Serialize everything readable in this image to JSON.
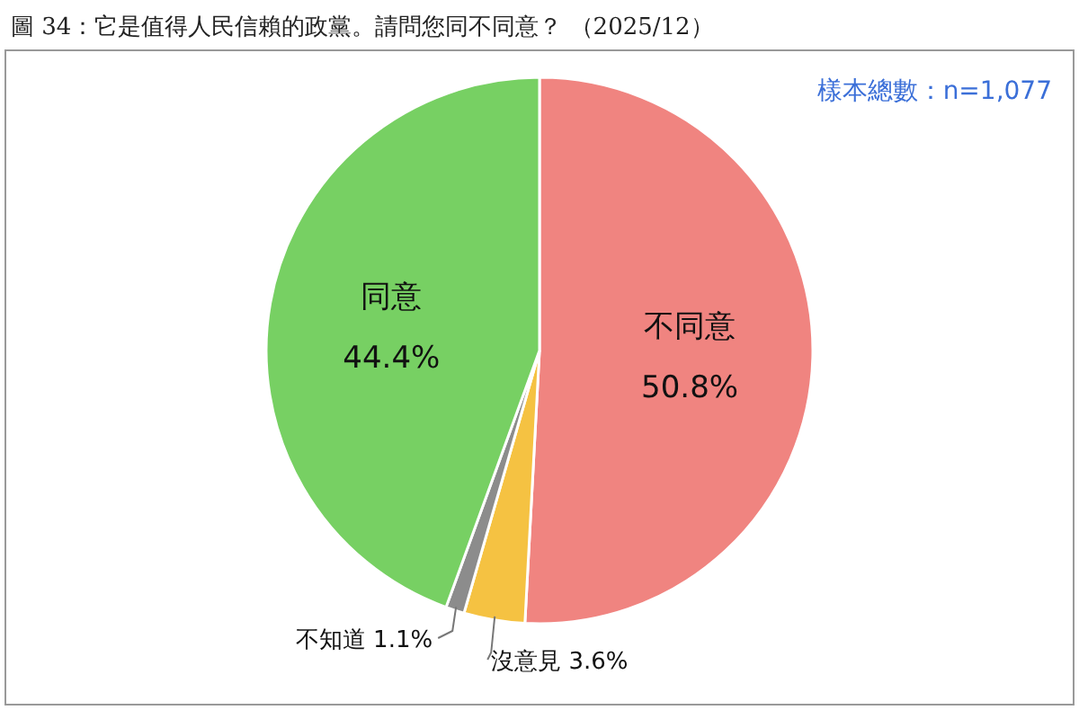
{
  "chart_data": {
    "type": "pie",
    "title": "圖 34：它是值得人民信賴的政黨。請問您同不同意？ （2025/12）",
    "annotations": [
      "樣本總數：n=1,077"
    ],
    "categories": [
      "不同意",
      "沒意見",
      "不知道",
      "同意"
    ],
    "values": [
      50.8,
      3.6,
      1.1,
      44.4
    ],
    "value_labels": [
      "50.8%",
      "3.6%",
      "1.1%",
      "44.4%"
    ],
    "colors": [
      "#f08480",
      "#f5c242",
      "#8c8c8c",
      "#77d063"
    ]
  }
}
